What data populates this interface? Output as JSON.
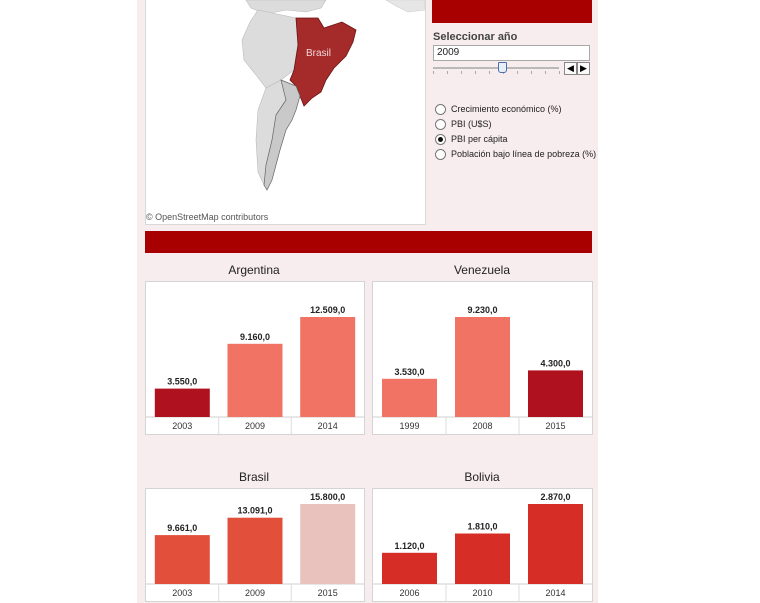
{
  "map": {
    "country_label": "Brasil",
    "attribution": "© OpenStreetMap contributors"
  },
  "controls": {
    "title": "Seleccionar año",
    "year_value": "2009",
    "slider_level": 0.55,
    "prev_label": "◀",
    "next_label": "▶",
    "indicators": [
      {
        "label": "Crecimiento económico (%)",
        "selected": false
      },
      {
        "label": "PBI (U$S)",
        "selected": false
      },
      {
        "label": "PBI per cápita",
        "selected": true
      },
      {
        "label": "Población bajo línea de pobreza (%)",
        "selected": false
      }
    ]
  },
  "colors": {
    "header_bar": "#a80000",
    "panel_bg": "#f7ecee",
    "brasil_fill": "#a52a2a"
  },
  "chart_data": [
    {
      "type": "bar",
      "title": "Argentina",
      "categories": [
        "2003",
        "2009",
        "2014"
      ],
      "values": [
        3550,
        9160,
        12509
      ],
      "labels": [
        "3.550,0",
        "9.160,0",
        "12.509,0"
      ],
      "colors": [
        "#b0111f",
        "#f07364",
        "#f07364"
      ]
    },
    {
      "type": "bar",
      "title": "Venezuela",
      "categories": [
        "1999",
        "2008",
        "2015"
      ],
      "values": [
        3530,
        9230,
        4300
      ],
      "labels": [
        "3.530,0",
        "9.230,0",
        "4.300,0"
      ],
      "colors": [
        "#f07364",
        "#f07364",
        "#b0111f"
      ]
    },
    {
      "type": "bar",
      "title": "Brasil",
      "categories": [
        "2003",
        "2009",
        "2015"
      ],
      "values": [
        9661,
        13091,
        15800
      ],
      "labels": [
        "9.661,0",
        "13.091,0",
        "15.800,0"
      ],
      "colors": [
        "#e2503c",
        "#e2503c",
        "#e9c1bd"
      ]
    },
    {
      "type": "bar",
      "title": "Bolivia",
      "categories": [
        "2006",
        "2010",
        "2014"
      ],
      "values": [
        1120,
        1810,
        2870
      ],
      "labels": [
        "1.120,0",
        "1.810,0",
        "2.870,0"
      ],
      "colors": [
        "#d72d27",
        "#d72d27",
        "#d72d27"
      ]
    }
  ]
}
